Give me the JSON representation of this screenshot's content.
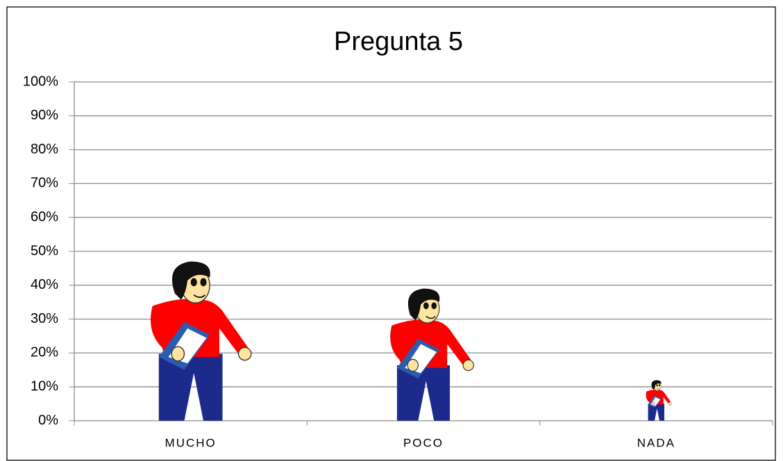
{
  "chart_data": {
    "type": "pictograph",
    "title": "Pregunta 5",
    "categories": [
      "MUCHO",
      "POCO",
      "NADA"
    ],
    "values": [
      47,
      39,
      12
    ],
    "colors": {
      "shirt": "#ff0000",
      "pants": "#1c2a8c",
      "hair": "#111111",
      "skin": "#fde4a0",
      "book": "#2a5db0"
    },
    "ylim": [
      0,
      100
    ],
    "yticks": [
      {
        "value": 0,
        "label": "0%"
      },
      {
        "value": 10,
        "label": "10%"
      },
      {
        "value": 20,
        "label": "20%"
      },
      {
        "value": 30,
        "label": "30%"
      },
      {
        "value": 40,
        "label": "40%"
      },
      {
        "value": 50,
        "label": "50%"
      },
      {
        "value": 60,
        "label": "60%"
      },
      {
        "value": 70,
        "label": "70%"
      },
      {
        "value": 80,
        "label": "80%"
      },
      {
        "value": 90,
        "label": "90%"
      },
      {
        "value": 100,
        "label": "100%"
      }
    ],
    "grid": true
  }
}
